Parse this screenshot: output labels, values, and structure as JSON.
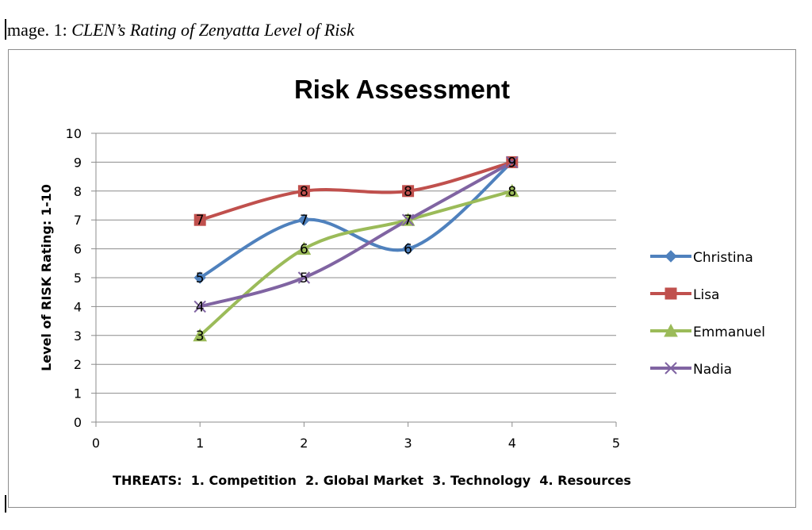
{
  "caption": {
    "prefix": "mage. 1: ",
    "title": "CLEN’s Rating of Zenyatta Level of Risk"
  },
  "chart_data": {
    "type": "line",
    "title": "Risk Assessment",
    "xlabel": "THREATS:  1. Competition  2. Global Market  3. Technology  4. Resources",
    "ylabel": "Level of RISK Rating: 1-10",
    "xlim": [
      0,
      5
    ],
    "ylim": [
      0,
      10
    ],
    "xticks": [
      0,
      1,
      2,
      3,
      4,
      5
    ],
    "yticks": [
      0,
      1,
      2,
      3,
      4,
      5,
      6,
      7,
      8,
      9,
      10
    ],
    "grid": true,
    "legend_position": "right",
    "smooth": true,
    "x": [
      1,
      2,
      3,
      4
    ],
    "series": [
      {
        "name": "Christina",
        "values": [
          5,
          7,
          6,
          9
        ],
        "color": "#4f81bd",
        "marker": "diamond"
      },
      {
        "name": "Lisa",
        "values": [
          7,
          8,
          8,
          9
        ],
        "color": "#c0504d",
        "marker": "square"
      },
      {
        "name": "Emmanuel",
        "values": [
          3,
          6,
          7,
          8
        ],
        "color": "#9bbb59",
        "marker": "triangle"
      },
      {
        "name": "Nadia",
        "values": [
          4,
          5,
          7,
          9
        ],
        "color": "#8064a2",
        "marker": "x"
      }
    ]
  }
}
